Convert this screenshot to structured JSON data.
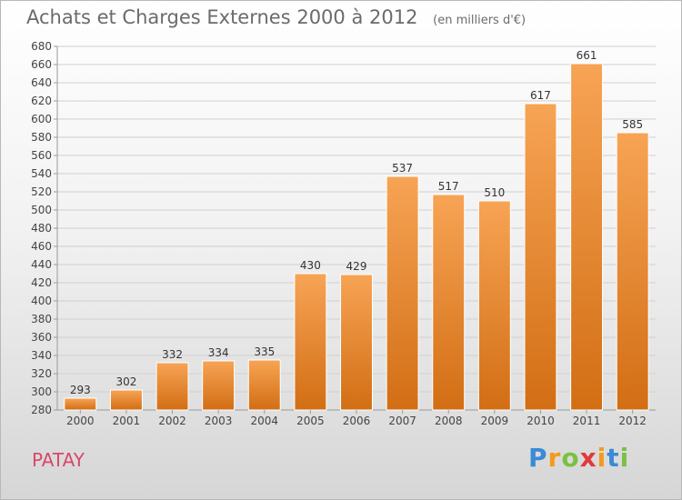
{
  "header": {
    "title": "Achats et Charges Externes 2000 à 2012",
    "unit": "(en milliers d'€)"
  },
  "footer": {
    "city": "PATAY",
    "logo_letters": [
      "P",
      "r",
      "o",
      "x",
      "i",
      "t",
      "i"
    ],
    "logo_colors": [
      "#3a8ad6",
      "#f29a1c",
      "#7ac142",
      "#e03a3a",
      "#f29a1c",
      "#3a8ad6",
      "#7ac142"
    ]
  },
  "colors": {
    "bar_top": "#f7a455",
    "bar_bottom": "#d26e14",
    "grid": "#d0d0d0",
    "axis": "#9a9a9a",
    "city": "#d84868"
  },
  "chart_data": {
    "type": "bar",
    "title": "Achats et Charges Externes 2000 à 2012",
    "subtitle": "(en milliers d'€)",
    "xlabel": "",
    "ylabel": "",
    "categories": [
      "2000",
      "2001",
      "2002",
      "2003",
      "2004",
      "2005",
      "2006",
      "2007",
      "2008",
      "2009",
      "2010",
      "2011",
      "2012"
    ],
    "values": [
      293,
      302,
      332,
      334,
      335,
      430,
      429,
      537,
      517,
      510,
      617,
      661,
      585
    ],
    "ylim": [
      280,
      680
    ],
    "ytick_step": 20,
    "grid": true
  }
}
